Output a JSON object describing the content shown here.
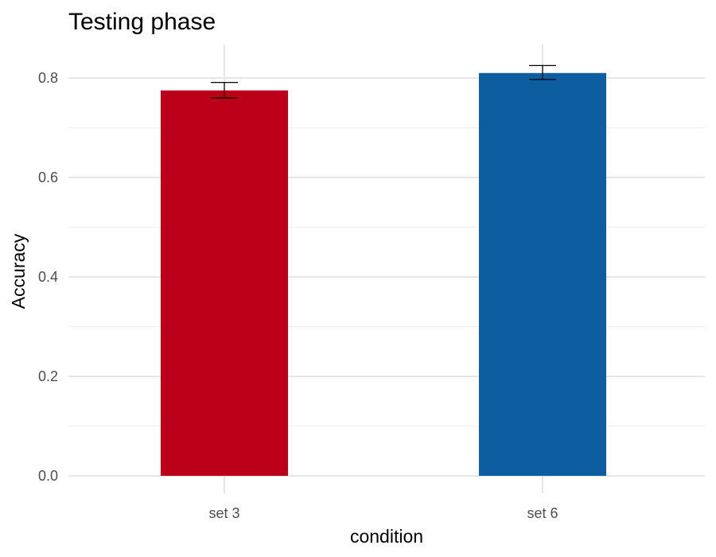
{
  "chart_data": {
    "type": "bar",
    "title": "Testing phase",
    "xlabel": "condition",
    "ylabel": "Accuracy",
    "categories": [
      "set 3",
      "set 6"
    ],
    "values": [
      0.775,
      0.81
    ],
    "error_low": [
      0.76,
      0.797
    ],
    "error_high": [
      0.791,
      0.825
    ],
    "colors": [
      "#BD0019",
      "#0D5EA0"
    ],
    "ylim": [
      -0.01,
      0.87
    ],
    "yticks": [
      0.0,
      0.2,
      0.4,
      0.6,
      0.8
    ],
    "yticks_minor": [
      0.1,
      0.3,
      0.5,
      0.7
    ],
    "ytick_labels": [
      "0.0",
      "0.2",
      "0.4",
      "0.6",
      "0.8"
    ],
    "grid": true,
    "legend": "none"
  }
}
